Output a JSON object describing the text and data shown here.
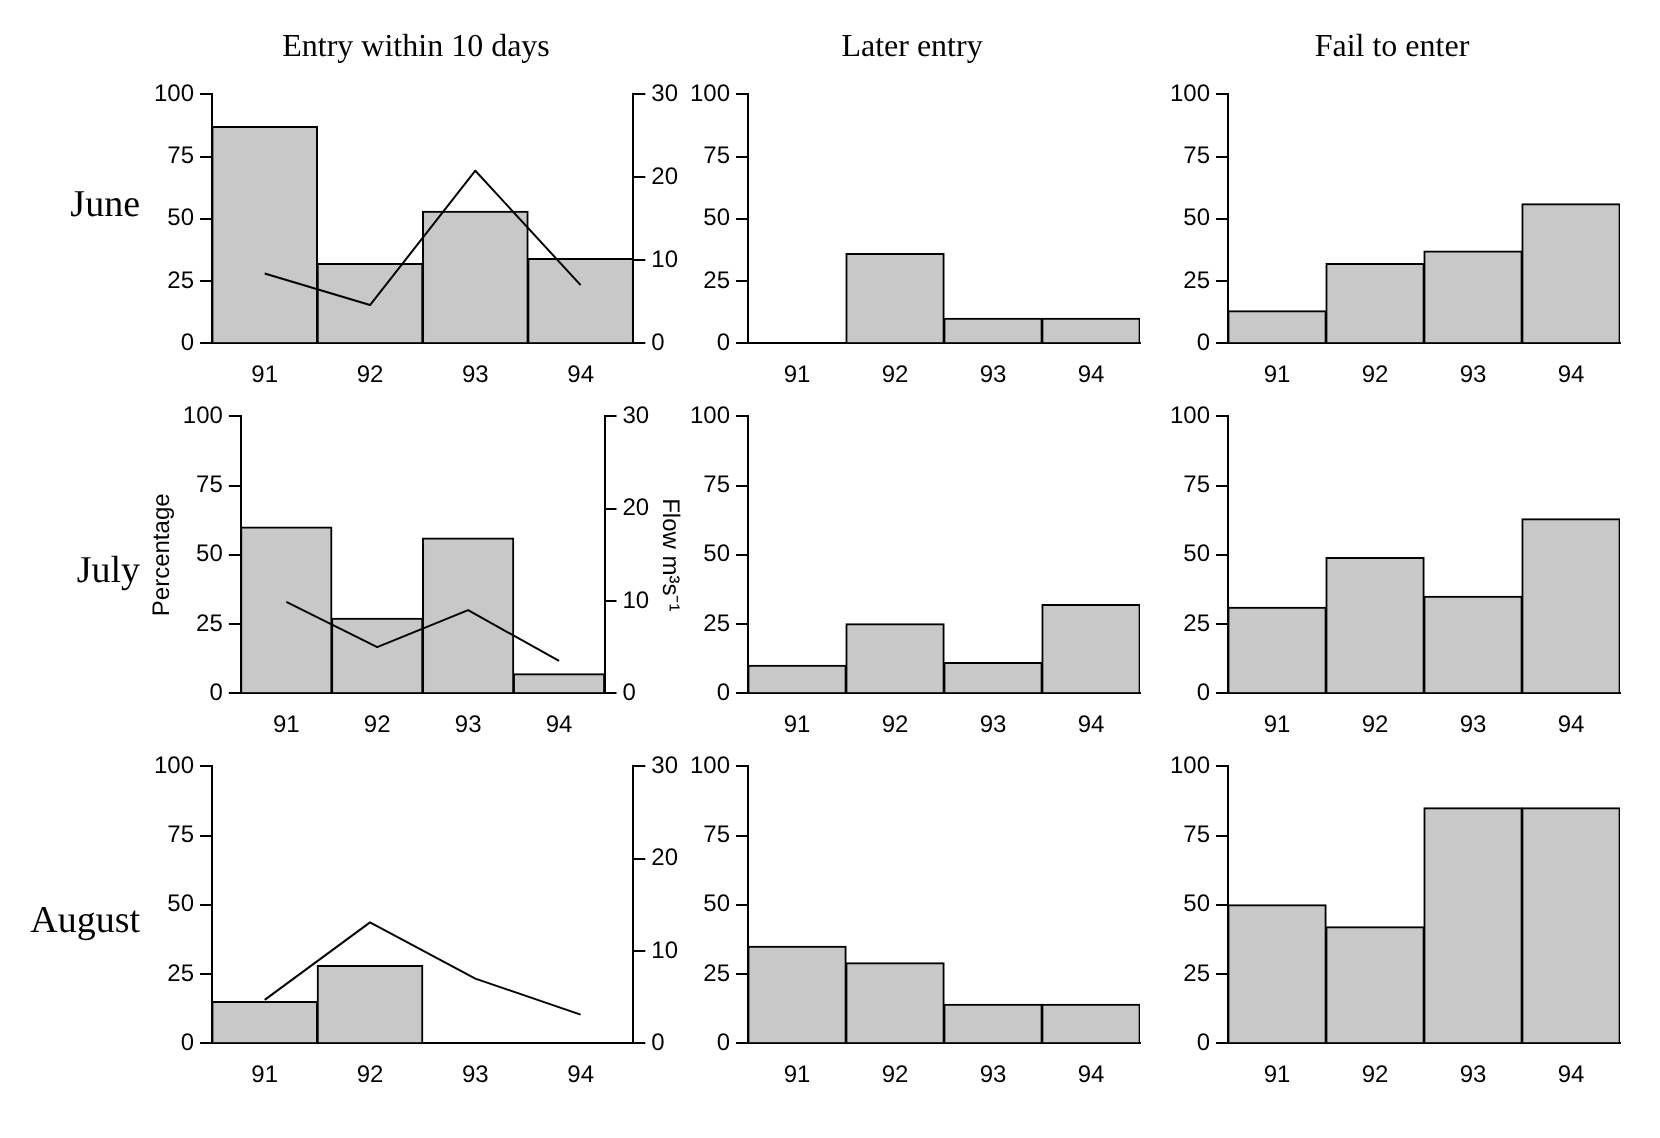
{
  "chart_data": [
    {
      "type": "bar",
      "title": "Entry within 10 days",
      "annotations": [
        "June"
      ],
      "categories": [
        "91",
        "92",
        "93",
        "94"
      ],
      "ylim": [
        0,
        100
      ],
      "yticks": [
        0,
        25,
        50,
        75,
        100
      ],
      "y2lim": [
        0,
        30
      ],
      "y2ticks": [
        0,
        10,
        20,
        30
      ],
      "series": [
        {
          "color": "#c8c8c8",
          "values": [
            87,
            32,
            53,
            34
          ]
        },
        {
          "type": "line",
          "axis": "y2",
          "color": "#000000",
          "values": [
            8.4,
            4.6,
            20.8,
            7
          ]
        }
      ],
      "marker": "none"
    },
    {
      "type": "bar",
      "title": "Later entry",
      "categories": [
        "91",
        "92",
        "93",
        "94"
      ],
      "ylim": [
        0,
        100
      ],
      "yticks": [
        0,
        25,
        50,
        75,
        100
      ],
      "color": "#c8c8c8",
      "values": [
        0,
        36,
        10,
        10
      ]
    },
    {
      "type": "bar",
      "title": "Fail to enter",
      "categories": [
        "91",
        "92",
        "93",
        "94"
      ],
      "ylim": [
        0,
        100
      ],
      "yticks": [
        0,
        25,
        50,
        75,
        100
      ],
      "color": "#c8c8c8",
      "values": [
        13,
        32,
        37,
        56
      ]
    },
    {
      "type": "bar",
      "ylabel": "Percentage",
      "y2label": "Flow m³s⁻¹",
      "annotations": [
        "July"
      ],
      "categories": [
        "91",
        "92",
        "93",
        "94"
      ],
      "ylim": [
        0,
        100
      ],
      "yticks": [
        0,
        25,
        50,
        75,
        100
      ],
      "y2lim": [
        0,
        30
      ],
      "y2ticks": [
        0,
        10,
        20,
        30
      ],
      "series": [
        {
          "color": "#c8c8c8",
          "values": [
            60,
            27,
            56,
            7
          ]
        },
        {
          "type": "line",
          "axis": "y2",
          "color": "#000000",
          "values": [
            9.9,
            5,
            9,
            3.5
          ]
        }
      ],
      "marker": "none"
    },
    {
      "type": "bar",
      "categories": [
        "91",
        "92",
        "93",
        "94"
      ],
      "ylim": [
        0,
        100
      ],
      "yticks": [
        0,
        25,
        50,
        75,
        100
      ],
      "color": "#c8c8c8",
      "values": [
        10,
        25,
        11,
        32
      ]
    },
    {
      "type": "bar",
      "categories": [
        "91",
        "92",
        "93",
        "94"
      ],
      "ylim": [
        0,
        100
      ],
      "yticks": [
        0,
        25,
        50,
        75,
        100
      ],
      "color": "#c8c8c8",
      "values": [
        31,
        49,
        35,
        63
      ]
    },
    {
      "type": "bar",
      "annotations": [
        "August"
      ],
      "categories": [
        "91",
        "92",
        "93",
        "94"
      ],
      "ylim": [
        0,
        100
      ],
      "yticks": [
        0,
        25,
        50,
        75,
        100
      ],
      "y2lim": [
        0,
        30
      ],
      "y2ticks": [
        0,
        10,
        20,
        30
      ],
      "series": [
        {
          "color": "#c8c8c8",
          "values": [
            15,
            28,
            0,
            0
          ]
        },
        {
          "type": "line",
          "axis": "y2",
          "color": "#000000",
          "values": [
            4.7,
            13.1,
            7,
            3.1
          ]
        }
      ],
      "marker": "none"
    },
    {
      "type": "bar",
      "categories": [
        "91",
        "92",
        "93",
        "94"
      ],
      "ylim": [
        0,
        100
      ],
      "yticks": [
        0,
        25,
        50,
        75,
        100
      ],
      "color": "#c8c8c8",
      "values": [
        35,
        29,
        14,
        14
      ]
    },
    {
      "type": "bar",
      "categories": [
        "91",
        "92",
        "93",
        "94"
      ],
      "ylim": [
        0,
        100
      ],
      "yticks": [
        0,
        25,
        50,
        75,
        100
      ],
      "color": "#c8c8c8",
      "values": [
        50,
        42,
        85,
        85
      ]
    }
  ]
}
